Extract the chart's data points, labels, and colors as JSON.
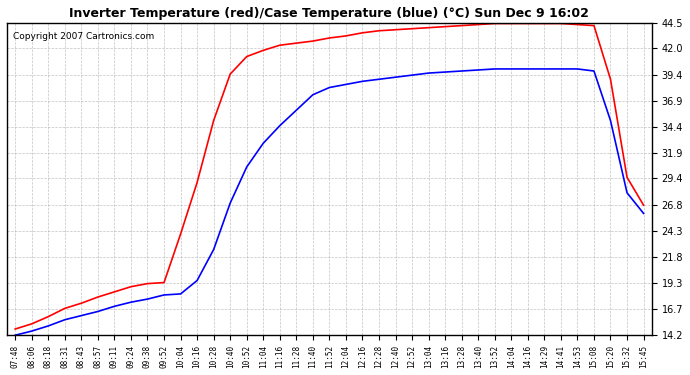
{
  "title": "Inverter Temperature (red)/Case Temperature (blue) (°C) Sun Dec 9 16:02",
  "copyright": "Copyright 2007 Cartronics.com",
  "background_color": "#ffffff",
  "plot_bg_color": "#ffffff",
  "grid_color": "#aaaaaa",
  "line_red_color": "#ff0000",
  "line_blue_color": "#0000ff",
  "ylim": [
    14.2,
    44.5
  ],
  "yticks": [
    14.2,
    16.7,
    19.3,
    21.8,
    24.3,
    26.8,
    29.4,
    31.9,
    34.4,
    36.9,
    39.4,
    42.0,
    44.5
  ],
  "xtick_labels": [
    "07:48",
    "08:06",
    "08:18",
    "08:31",
    "08:43",
    "08:57",
    "09:11",
    "09:24",
    "09:38",
    "09:52",
    "10:04",
    "10:16",
    "10:28",
    "10:40",
    "10:52",
    "11:04",
    "11:16",
    "11:28",
    "11:40",
    "11:52",
    "12:04",
    "12:16",
    "12:28",
    "12:40",
    "12:52",
    "13:04",
    "13:16",
    "13:28",
    "13:40",
    "13:52",
    "14:04",
    "14:16",
    "14:29",
    "14:41",
    "14:53",
    "15:08",
    "15:20",
    "15:32",
    "15:45"
  ],
  "red_data": [
    14.8,
    15.3,
    16.0,
    16.8,
    17.3,
    17.9,
    18.4,
    18.9,
    19.2,
    19.3,
    24.0,
    29.0,
    35.0,
    39.5,
    41.2,
    41.8,
    42.3,
    42.5,
    42.7,
    43.0,
    43.2,
    43.5,
    43.7,
    43.8,
    43.9,
    44.0,
    44.1,
    44.2,
    44.3,
    44.4,
    44.4,
    44.4,
    44.4,
    44.4,
    44.3,
    44.2,
    39.0,
    29.5,
    26.8
  ],
  "blue_data": [
    14.2,
    14.6,
    15.1,
    15.7,
    16.1,
    16.5,
    17.0,
    17.4,
    17.7,
    18.1,
    18.2,
    19.5,
    22.5,
    27.0,
    30.5,
    32.8,
    34.5,
    36.0,
    37.5,
    38.2,
    38.5,
    38.8,
    39.0,
    39.2,
    39.4,
    39.6,
    39.7,
    39.8,
    39.9,
    40.0,
    40.0,
    40.0,
    40.0,
    40.0,
    40.0,
    39.8,
    35.0,
    28.0,
    26.0
  ]
}
